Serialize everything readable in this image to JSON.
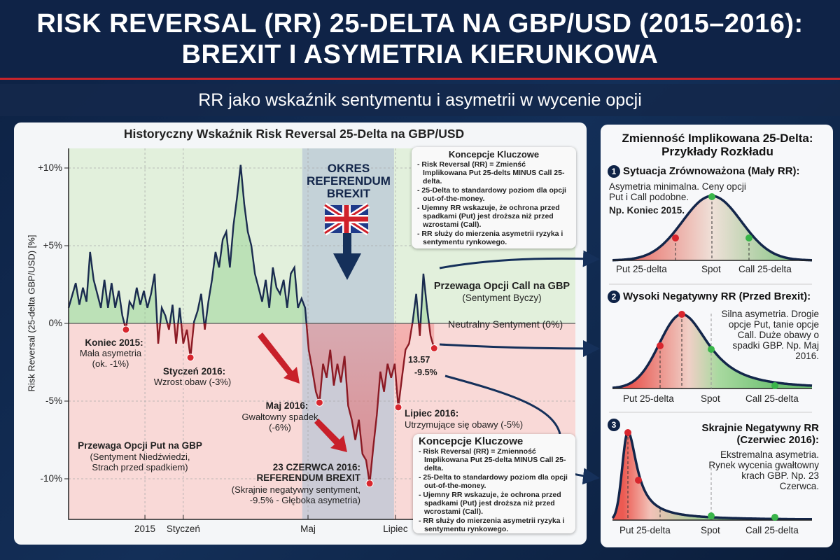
{
  "header": {
    "title_line1": "RISK REVERSAL (RR) 25-DELTA NA GBP/USD (2015–2016):",
    "title_line2": "BREXIT I ASYMETRIA KIERUNKOWA"
  },
  "subtitle": "RR jako wskaźnik sentymentu i asymetrii w wycenie opcji",
  "colors": {
    "navy": "#1a2b4f",
    "red_line": "#8b1a24",
    "bull_zone": "#e2f0dc",
    "bear_zone": "#f9d9d7",
    "brexit_zone": "#c6cfdc",
    "put": "#d8262e",
    "call": "#3ab54a"
  },
  "chart_data": {
    "type": "line",
    "title": "Historyczny Wskaźnik Risk Reversal 25-Delta na GBP/USD",
    "ylabel": "Risk Reversal (25-delta GBP/USD) [%]",
    "xlabel": "",
    "ylim": [
      -12.5,
      11.3
    ],
    "y_ticks": [
      {
        "v": 10,
        "label": "+10%"
      },
      {
        "v": 5,
        "label": "+5%"
      },
      {
        "v": 0,
        "label": "0%"
      },
      {
        "v": -5,
        "label": "-5%"
      },
      {
        "v": -10,
        "label": "-10%"
      }
    ],
    "x_ticks": [
      {
        "i": 21.3,
        "label": "2015"
      },
      {
        "i": 32,
        "label": "Styczeń"
      },
      {
        "i": 66.8,
        "label": "Maj"
      },
      {
        "i": 91.2,
        "label": "Lipiec"
      }
    ],
    "grid": true,
    "values": [
      1.0,
      1.8,
      2.6,
      1.2,
      2.3,
      1.4,
      4.6,
      2.8,
      1.9,
      1.0,
      2.8,
      1.0,
      2.6,
      1.0,
      2.1,
      0.5,
      -0.4,
      1.4,
      1.0,
      2.3,
      1.2,
      2.1,
      1.0,
      1.9,
      3.2,
      -1.3,
      1.0,
      0.5,
      -0.4,
      1.2,
      -1.3,
      1.0,
      -1.3,
      -0.4,
      -2.2,
      0.1,
      0.8,
      1.9,
      -0.4,
      1.4,
      2.8,
      4.6,
      3.6,
      5.4,
      5.9,
      3.6,
      6.3,
      8.1,
      10.2,
      7.7,
      5.9,
      5.0,
      3.2,
      2.3,
      1.4,
      2.8,
      1.0,
      3.6,
      2.3,
      1.9,
      2.8,
      1.0,
      3.2,
      3.6,
      1.0,
      1.6,
      1.0,
      -1.7,
      -3.0,
      -4.4,
      -5.1,
      -2.6,
      -3.5,
      -1.7,
      -4.0,
      -2.6,
      -3.8,
      -2.1,
      -5.3,
      -6.2,
      -7.5,
      -6.2,
      -8.4,
      -8.8,
      -10.3,
      -8.0,
      -5.9,
      -3.1,
      -4.4,
      -2.6,
      -3.5,
      -2.6,
      -5.4,
      -3.5,
      -1.7,
      -1.3,
      0.1,
      1.9,
      -0.8,
      3.2,
      1.0,
      -0.8,
      -1.6
    ],
    "highlight_points": [
      16,
      34,
      70,
      84,
      92,
      102
    ],
    "brexit_period": [
      65.2,
      90.8
    ],
    "annotations": {
      "brexit_period": "OKRES REFERENDUM BREXIT",
      "neutral": "Neutralny Sentyment (0%)",
      "call_title": "Przewaga Opcji Call na GBP",
      "call_sub": "(Sentyment Byczy)",
      "put_title": "Przewaga Opcji Put na GBP",
      "put_sub": "(Sentyment Niedźwiedzi, Strach przed spadkiem)",
      "koniec_title": "Koniec 2015:",
      "koniec_sub": "Mała asymetria (ok. -1%)",
      "styczen_title": "Styczeń 2016:",
      "styczen_sub": "Wzrost obaw (-3%)",
      "maj_title": "Maj 2016:",
      "maj_sub": "Gwałtowny spadek (-6%)",
      "czerwiec_title": "23 CZERWCA 2016: REFERENDUM BREXIT",
      "czerwiec_sub": "(Skrajnie negatywny sentyment, -9.5% - Głęboka asymetria)",
      "lipiec_title": "Lipiec 2016:",
      "lipiec_sub": "Utrzymujące się obawy (-5%)",
      "value1": "13.57",
      "value2": "-9.5%"
    }
  },
  "key_box_top": {
    "title": "Koncepcje Kluczowe",
    "items": [
      "- Risk Reversal (RR) = Zmienść Implikowana Put 25-delts MINUS Call 25-delta.",
      "- 25-Delta to standardowy poziom dla opcji out-of-the-money.",
      "- Ujemny RR wskazuje, że ochrona przed spadkami (Put) jest droższa niż przed wzrostami (Call).",
      "- RR służy do mierzenia asymetrii ryzyka i sentymentu rynkowego."
    ]
  },
  "key_box_bottom": {
    "title": "Koncepcje Kluczowe",
    "items": [
      "- Risk Reversal (RR) = Zmienność Implikowana Put 25-delta MINUS Call 25-delta.",
      "- 25-Delta to standardowy poziom dla opcji out-of-the-money.",
      "- Ujemny RR wskazuje, że ochrona przed spadkami (Put) jest droższa niż przed wcrostami (Call).",
      "- RR służy do mierzenia asymetrii ryzyka i sentymentu rynkowego."
    ]
  },
  "right_panel": {
    "title": "Zmienność Implikowana 25-Delta: Przykłady Rozkładu",
    "axis_labels": {
      "put": "Put 25-delta",
      "spot": "Spot",
      "call": "Call 25-delta"
    },
    "scenarios": [
      {
        "num": "1",
        "title": "Sytuacja Zrównoważona (Mały RR):",
        "desc": "Asymetria minimalna. Ceny opcji Put i Call podobne.",
        "example": "Np. Koniec 2015."
      },
      {
        "num": "2",
        "title": "Wysoki Negatywny RR (Przed Brexit):",
        "desc": "Silna asymetria. Drogie opcje Put, tanie opcje Call. Duże obawy o spadki GBP. Np. Maj 2016."
      },
      {
        "num": "3",
        "title": "Skrajnie Negatywny RR (Czerwiec 2016):",
        "desc": "Ekstremalna asymetria. Rynek wycenia gwałtowny krach GBP. Np. 23 Czerwca."
      }
    ]
  }
}
